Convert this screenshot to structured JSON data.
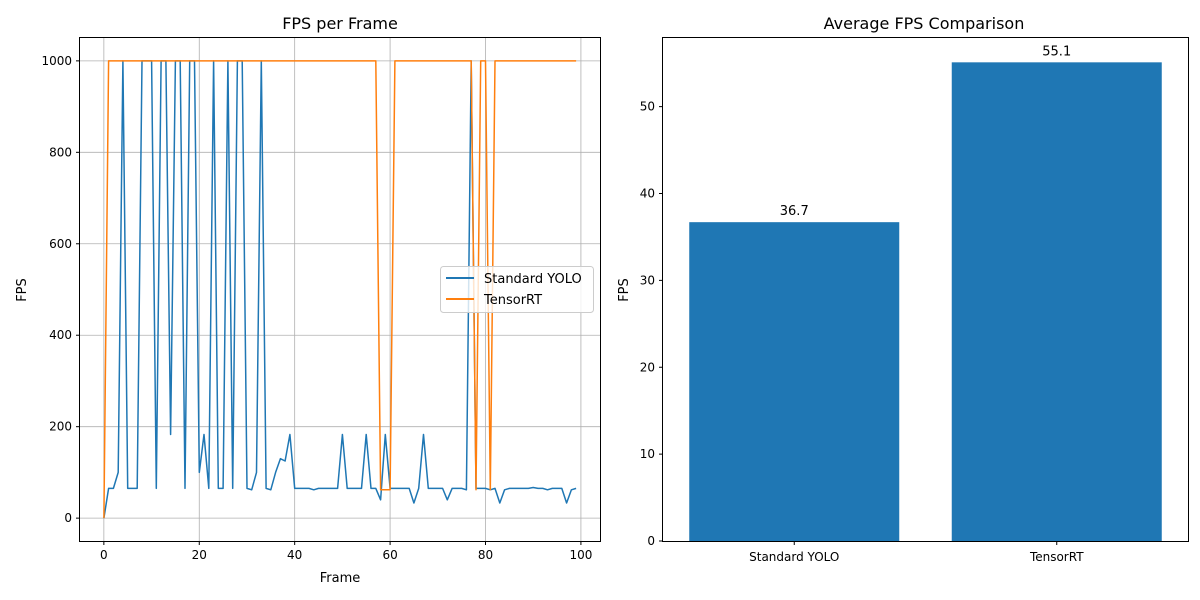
{
  "chart_data": [
    {
      "type": "line",
      "title": "FPS per Frame",
      "xlabel": "Frame",
      "ylabel": "FPS",
      "xlim": [
        -5,
        104
      ],
      "ylim": [
        -50,
        1050
      ],
      "xticks": [
        0,
        20,
        40,
        60,
        80,
        100
      ],
      "yticks": [
        0,
        200,
        400,
        600,
        800,
        1000
      ],
      "grid": true,
      "legend_position": "center-right",
      "series": [
        {
          "name": "Standard YOLO",
          "color": "#1f77b4",
          "x": [
            0,
            1,
            2,
            3,
            4,
            5,
            6,
            7,
            8,
            9,
            10,
            11,
            12,
            13,
            14,
            15,
            16,
            17,
            18,
            19,
            20,
            21,
            22,
            23,
            24,
            25,
            26,
            27,
            28,
            29,
            30,
            31,
            32,
            33,
            34,
            35,
            36,
            37,
            38,
            39,
            40,
            41,
            42,
            43,
            44,
            45,
            46,
            47,
            48,
            49,
            50,
            51,
            52,
            53,
            54,
            55,
            56,
            57,
            58,
            59,
            60,
            61,
            62,
            63,
            64,
            65,
            66,
            67,
            68,
            69,
            70,
            71,
            72,
            73,
            74,
            75,
            76,
            77,
            78,
            79,
            80,
            81,
            82,
            83,
            84,
            85,
            86,
            87,
            88,
            89,
            90,
            91,
            92,
            93,
            94,
            95,
            96,
            97,
            98,
            99
          ],
          "y": [
            0,
            65,
            65,
            100,
            1000,
            65,
            65,
            65,
            1000,
            1000,
            1000,
            65,
            1000,
            1000,
            183,
            1000,
            1000,
            65,
            1000,
            1000,
            100,
            183,
            65,
            1000,
            65,
            65,
            1000,
            65,
            1000,
            1000,
            65,
            62,
            100,
            1000,
            65,
            62,
            100,
            130,
            125,
            183,
            65,
            65,
            65,
            65,
            62,
            65,
            65,
            65,
            65,
            65,
            183,
            65,
            65,
            65,
            65,
            183,
            65,
            65,
            40,
            183,
            65,
            65,
            65,
            65,
            65,
            33,
            65,
            183,
            65,
            65,
            65,
            65,
            40,
            65,
            65,
            65,
            62,
            1000,
            65,
            65,
            65,
            62,
            65,
            33,
            62,
            65,
            65,
            65,
            65,
            65,
            67,
            65,
            65,
            62,
            65,
            65,
            65,
            33,
            62,
            65
          ]
        },
        {
          "name": "TensorRT",
          "color": "#ff7f0e",
          "x": [
            0,
            1,
            2,
            3,
            4,
            5,
            6,
            7,
            8,
            9,
            10,
            11,
            12,
            13,
            14,
            15,
            16,
            17,
            18,
            19,
            20,
            21,
            22,
            23,
            24,
            25,
            26,
            27,
            28,
            29,
            30,
            31,
            32,
            33,
            34,
            35,
            36,
            37,
            38,
            39,
            40,
            41,
            42,
            43,
            44,
            45,
            46,
            47,
            48,
            49,
            50,
            51,
            52,
            53,
            54,
            55,
            56,
            57,
            58,
            59,
            60,
            61,
            62,
            63,
            64,
            65,
            66,
            67,
            68,
            69,
            70,
            71,
            72,
            73,
            74,
            75,
            76,
            77,
            78,
            79,
            80,
            81,
            82,
            83,
            84,
            85,
            86,
            87,
            88,
            89,
            90,
            91,
            92,
            93,
            94,
            95,
            96,
            97,
            98,
            99
          ],
          "y": [
            0,
            1000,
            1000,
            1000,
            1000,
            1000,
            1000,
            1000,
            1000,
            1000,
            1000,
            1000,
            1000,
            1000,
            1000,
            1000,
            1000,
            1000,
            1000,
            1000,
            1000,
            1000,
            1000,
            1000,
            1000,
            1000,
            1000,
            1000,
            1000,
            1000,
            1000,
            1000,
            1000,
            1000,
            1000,
            1000,
            1000,
            1000,
            1000,
            1000,
            1000,
            1000,
            1000,
            1000,
            1000,
            1000,
            1000,
            1000,
            1000,
            1000,
            1000,
            1000,
            1000,
            1000,
            1000,
            1000,
            1000,
            1000,
            62,
            62,
            62,
            1000,
            1000,
            1000,
            1000,
            1000,
            1000,
            1000,
            1000,
            1000,
            1000,
            1000,
            1000,
            1000,
            1000,
            1000,
            1000,
            1000,
            62,
            1000,
            1000,
            62,
            1000,
            1000,
            1000,
            1000,
            1000,
            1000,
            1000,
            1000,
            1000,
            1000,
            1000,
            1000,
            1000,
            1000,
            1000,
            1000,
            1000,
            1000
          ]
        }
      ]
    },
    {
      "type": "bar",
      "title": "Average FPS Comparison",
      "xlabel": "",
      "ylabel": "FPS",
      "categories": [
        "Standard YOLO",
        "TensorRT"
      ],
      "values": [
        36.7,
        55.1
      ],
      "value_labels": [
        "36.7",
        "55.1"
      ],
      "ylim": [
        0,
        57.9
      ],
      "yticks": [
        0,
        10,
        20,
        30,
        40,
        50
      ],
      "grid": false,
      "bar_color": "#1f77b4"
    }
  ]
}
